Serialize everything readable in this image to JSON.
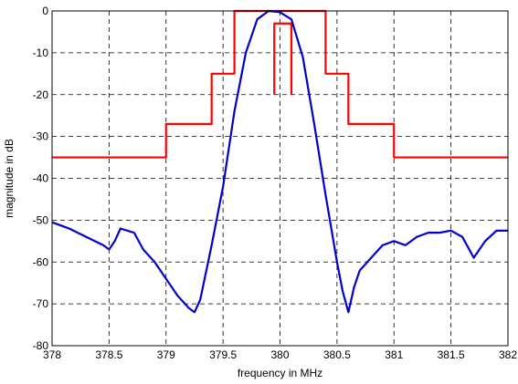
{
  "chart_data": {
    "type": "line",
    "xlabel": "frequency in MHz",
    "ylabel": "magnitude in dB",
    "xlim": [
      378,
      382
    ],
    "ylim": [
      -80,
      0
    ],
    "grid": true,
    "xticks": [
      378,
      378.5,
      379,
      379.5,
      380,
      380.5,
      381,
      381.5,
      382
    ],
    "yticks": [
      0,
      -10,
      -20,
      -30,
      -40,
      -50,
      -60,
      -70,
      -80
    ],
    "xtick_labels": [
      "378",
      "378.5",
      "379",
      "379.5",
      "380",
      "380.5",
      "381",
      "381.5",
      "382"
    ],
    "ytick_labels": [
      "0",
      "-10",
      "-20",
      "-30",
      "-40",
      "-50",
      "-60",
      "-70",
      "-80"
    ],
    "series": [
      {
        "color": "#ff0000",
        "style": "step",
        "x": [
          378,
          379,
          379,
          379.4,
          379.4,
          379.6,
          379.6,
          380.4,
          380.4,
          380.6,
          380.6,
          381,
          381,
          382
        ],
        "y": [
          -35,
          -35,
          -27,
          -27,
          -15,
          -15,
          0,
          0,
          -15,
          -15,
          -27,
          -27,
          -35,
          -35
        ]
      },
      {
        "color": "#ff0000",
        "style": "step",
        "x": [
          379.95,
          379.95,
          380.1,
          380.1
        ],
        "y": [
          -20,
          -3,
          -3,
          -20
        ]
      },
      {
        "color": "#0000cc",
        "style": "line",
        "x": [
          378,
          378.15,
          378.3,
          378.45,
          378.5,
          378.55,
          378.6,
          378.72,
          378.8,
          378.9,
          379.0,
          379.1,
          379.2,
          379.25,
          379.3,
          379.4,
          379.5,
          379.6,
          379.7,
          379.8,
          379.9,
          380.0,
          380.1,
          380.2,
          380.3,
          380.4,
          380.5,
          380.55,
          380.6,
          380.65,
          380.7,
          380.8,
          380.9,
          381.0,
          381.1,
          381.2,
          381.3,
          381.4,
          381.5,
          381.6,
          381.7,
          381.8,
          381.9,
          382.0
        ],
        "y": [
          -50.5,
          -52,
          -54,
          -56,
          -57,
          -55,
          -52,
          -53,
          -57,
          -60,
          -64,
          -68,
          -71,
          -72,
          -69,
          -56,
          -42,
          -24,
          -10,
          -2,
          0,
          -0.3,
          -2,
          -11,
          -27,
          -44,
          -60,
          -67,
          -72,
          -66,
          -62,
          -59,
          -56,
          -55,
          -56,
          -54,
          -53,
          -53,
          -52.5,
          -54,
          -59,
          -55,
          -52.5,
          -52.5
        ]
      }
    ]
  }
}
